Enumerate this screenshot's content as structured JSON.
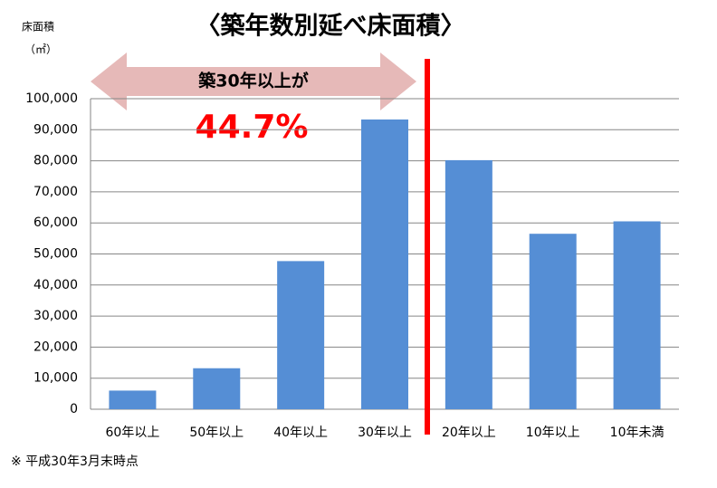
{
  "chart_data": {
    "type": "bar",
    "title": "〈築年数別延べ床面積〉",
    "y_label": "床面積",
    "y_unit": "（㎡）",
    "annotation": "築30年以上が",
    "annotation_value": "44.7%",
    "footnote": "※ 平成30年3月末時点",
    "categories": [
      "60年以上",
      "50年以上",
      "40年以上",
      "30年以上",
      "20年以上",
      "10年以上",
      "10年未満"
    ],
    "values": [
      6000,
      13200,
      47700,
      93300,
      80200,
      56500,
      60500
    ],
    "color": "#558ed5",
    "ylim": [
      0,
      100000
    ],
    "yticks": [
      0,
      {
        "value": 10000,
        "label": "10,000"
      },
      {
        "value": 20000,
        "label": "20,000"
      },
      {
        "value": 30000,
        "label": "30,000"
      },
      {
        "value": 40000,
        "label": "40,000"
      },
      {
        "value": 50000,
        "label": "50,000"
      },
      {
        "value": 60000,
        "label": "60,000"
      },
      {
        "value": 70000,
        "label": "70,000"
      },
      {
        "value": 80000,
        "label": "80,000"
      },
      {
        "value": 90000,
        "label": "90,000"
      },
      {
        "value": 100000,
        "label": "100,000"
      }
    ],
    "grid": true
  }
}
